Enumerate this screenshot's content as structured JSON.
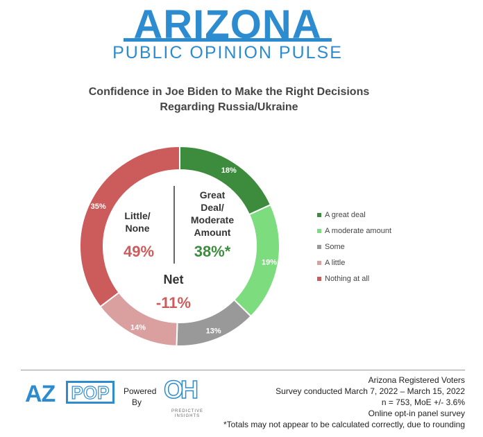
{
  "brand": {
    "title": "ARIZONA",
    "subtitle": "PUBLIC OPINION PULSE"
  },
  "chart_data": {
    "type": "pie",
    "title_line1": "Confidence in Joe Biden to Make the Right Decisions",
    "title_line2": "Regarding Russia/Ukraine",
    "categories": [
      "A great deal",
      "A moderate amount",
      "Some",
      "A little",
      "Nothing at all"
    ],
    "values": [
      18,
      19,
      13,
      14,
      35
    ],
    "labels": [
      "18%",
      "19%",
      "13%",
      "14%",
      "35%"
    ],
    "colors": [
      "#3d8b3d",
      "#7ddc7d",
      "#999999",
      "#daa0a0",
      "#cc5c5c"
    ],
    "legend_position": "right",
    "center": {
      "left_label_line1": "Little/",
      "left_label_line2": "None",
      "left_value": "49%",
      "right_label_line1": "Great",
      "right_label_line2": "Deal/",
      "right_label_line3": "Moderate",
      "right_label_line4": "Amount",
      "right_value": "38%*",
      "net_label": "Net",
      "net_value": "-11%"
    }
  },
  "footer": {
    "logo_left": "AZ",
    "logo_pop": "POP",
    "powered_line1": "Powered",
    "powered_line2": "By",
    "oh_logo": "OH",
    "oh_sub_line1": "PREDICTIVE",
    "oh_sub_line2": "INSIGHTS",
    "notes": [
      "Arizona Registered Voters",
      "Survey conducted March 7, 2022 – March 15, 2022",
      "n = 753, MoE +/- 3.6%",
      "Online opt-in panel survey",
      "*Totals may not appear to be calculated correctly, due to rounding"
    ]
  }
}
